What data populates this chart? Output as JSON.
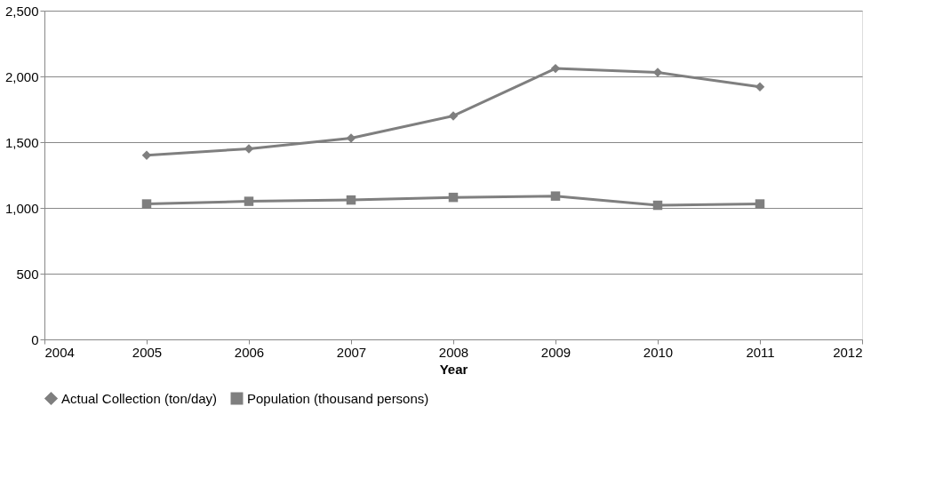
{
  "chart_data": {
    "type": "line",
    "xlabel": "Year",
    "x": [
      2005,
      2006,
      2007,
      2008,
      2009,
      2010,
      2011
    ],
    "series": [
      {
        "name": "Actual Collection (ton/day)",
        "color": "#7f7f7f",
        "marker": "diamond",
        "values": [
          1400,
          1450,
          1530,
          1700,
          2060,
          2030,
          1920
        ]
      },
      {
        "name": "Population (thousand persons)",
        "color": "#7f7f7f",
        "marker": "square",
        "values": [
          1030,
          1050,
          1060,
          1080,
          1090,
          1020,
          1030
        ]
      }
    ],
    "xlim": [
      2004,
      2012
    ],
    "xticks": [
      2004,
      2005,
      2006,
      2007,
      2008,
      2009,
      2010,
      2011,
      2012
    ],
    "ylim": [
      0,
      2500
    ],
    "yticks": [
      {
        "value": 0,
        "label": "0"
      },
      {
        "value": 500,
        "label": "500"
      },
      {
        "value": 1000,
        "label": "1,000"
      },
      {
        "value": 1500,
        "label": "1,500"
      },
      {
        "value": 2000,
        "label": "2,000"
      },
      {
        "value": 2500,
        "label": "2,500"
      }
    ],
    "grid": "y",
    "legend": "bottom",
    "line_style": "solid"
  }
}
